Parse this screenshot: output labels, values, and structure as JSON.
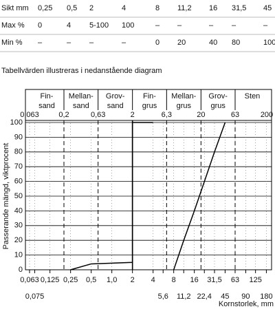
{
  "table": {
    "header": [
      "Sikt mm",
      "0,25",
      "0,5",
      "2",
      "4",
      "8",
      "11,2",
      "16",
      "31,5",
      "45"
    ],
    "rows": [
      [
        "Max %",
        "0",
        "4",
        "5-100",
        "100",
        "–",
        "–",
        "–",
        "–",
        "–"
      ],
      [
        "Min %",
        "–",
        "–",
        "–",
        "–",
        "0",
        "20",
        "40",
        "80",
        "100"
      ]
    ]
  },
  "caption": "Tabellvärden illustreras i nedanstående diagram",
  "chart_data": {
    "type": "line",
    "log_x": true,
    "zones": [
      [
        "Fin-",
        "sand"
      ],
      [
        "Mellan-",
        "sand"
      ],
      [
        "Grov-",
        "sand"
      ],
      [
        "Fin-",
        "grus"
      ],
      [
        "Mellan-",
        "grus"
      ],
      [
        "Grov-",
        "grus"
      ],
      [
        "Sten"
      ]
    ],
    "zone_bounds": [
      {
        "value": 0.063,
        "label": "0,063"
      },
      {
        "value": 0.2,
        "label": "0,2"
      },
      {
        "value": 0.63,
        "label": "0,63"
      },
      2,
      {
        "value": 6.3,
        "label": "6,3"
      },
      20,
      63,
      200
    ],
    "xticks": [
      {
        "value": 0.063,
        "label": "0,063"
      },
      {
        "value": 0.125,
        "label": "0,125"
      },
      {
        "value": 0.25,
        "label": "0,25"
      },
      {
        "value": 0.5,
        "label": "0,5"
      },
      {
        "value": 1,
        "label": "1,0"
      },
      2,
      4,
      8,
      16,
      {
        "value": 31.5,
        "label": "31,5"
      },
      63,
      125
    ],
    "xticks2": [
      {
        "value": 0.075,
        "label": "0,075"
      },
      {
        "value": 5.6,
        "label": "5,6"
      },
      {
        "value": 11.2,
        "label": "11,2"
      },
      {
        "value": 22.4,
        "label": "22,4"
      },
      45,
      90,
      180
    ],
    "xlim": [
      0.063,
      200
    ],
    "ylim": [
      0,
      100
    ],
    "yticks": [
      0,
      10,
      20,
      30,
      40,
      50,
      60,
      70,
      80,
      90,
      100
    ],
    "ylabel": "Passerande mängd, viktprocent",
    "xlabel": "Kornstorlek, mm",
    "series": [
      {
        "name": "Max %",
        "color": "#000000",
        "x": [
          0.25,
          0.5,
          2,
          2,
          4
        ],
        "values": [
          0,
          4,
          5,
          100,
          100
        ]
      },
      {
        "name": "Min %",
        "color": "#000000",
        "x": [
          8,
          11.2,
          16,
          31.5,
          45
        ],
        "values": [
          0,
          20,
          40,
          80,
          100
        ]
      }
    ]
  }
}
